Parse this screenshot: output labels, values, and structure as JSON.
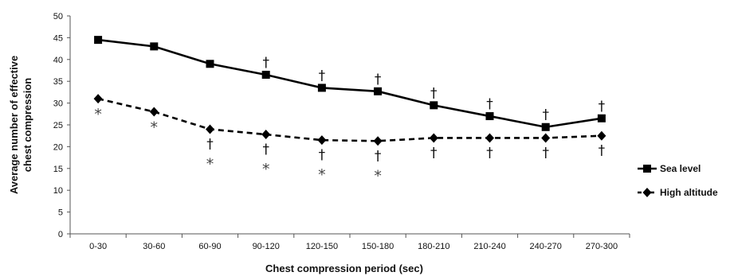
{
  "chart_data": {
    "type": "line",
    "xlabel": "Chest compression period (sec)",
    "ylabel_line1": "Average number of effective",
    "ylabel_line2": "chest compression",
    "ylim": [
      0,
      50
    ],
    "yticks": [
      0,
      5,
      10,
      15,
      20,
      25,
      30,
      35,
      40,
      45,
      50
    ],
    "categories": [
      "0-30",
      "30-60",
      "60-90",
      "90-120",
      "120-150",
      "150-180",
      "180-210",
      "210-240",
      "240-270",
      "270-300"
    ],
    "series": [
      {
        "name": "Sea level",
        "values": [
          44.5,
          43,
          39,
          36.5,
          33.5,
          32.7,
          29.5,
          27,
          24.5,
          26.5
        ],
        "line_style": "solid",
        "marker": "square",
        "color": "#000000"
      },
      {
        "name": "High altitude",
        "values": [
          31,
          28,
          24,
          22.8,
          21.5,
          21.3,
          22,
          22,
          22,
          22.5
        ],
        "line_style": "dashed",
        "marker": "diamond",
        "color": "#000000"
      }
    ],
    "grid": false,
    "legend_position": "right",
    "annotations": {
      "dagger_symbol": "†",
      "star_symbol": "*",
      "sea_level_dagger_indices": [
        3,
        4,
        5,
        6,
        7,
        8,
        9
      ],
      "high_altitude_dagger_indices": [
        2,
        3,
        4,
        5,
        6,
        7,
        8,
        9
      ],
      "high_altitude_star_indices": [
        0,
        1,
        2,
        3,
        4,
        5
      ]
    }
  }
}
